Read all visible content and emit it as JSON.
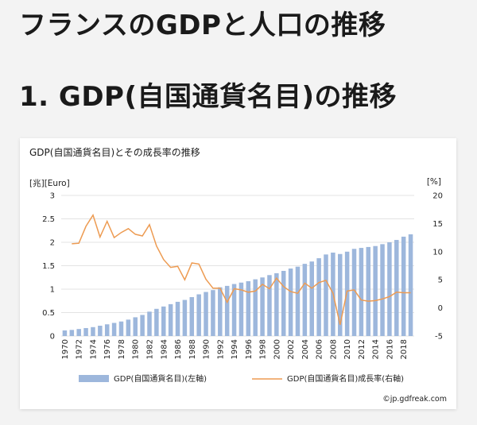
{
  "page": {
    "title": "フランスのGDPと人口の推移",
    "section_title": "1. GDP(自国通貨名目)の推移"
  },
  "chart": {
    "copyright": "©jp.gdfreak.com",
    "colors": {
      "bars": "#9db7dc",
      "line": "#ed9b52",
      "grid": "#e3e3e3"
    }
  },
  "chart_data": {
    "type": "bar",
    "title": "GDP(自国通貨名目)とその成長率の推移",
    "y_left_unit": "[兆][Euro]",
    "y_right_unit": "[%]",
    "y_left_range": [
      0,
      3
    ],
    "y_left_ticks": [
      "0",
      "0.5",
      "1",
      "1.5",
      "2",
      "2.5",
      "3"
    ],
    "y_right_range": [
      -5,
      20
    ],
    "y_right_ticks": [
      "-5",
      "0",
      "5",
      "10",
      "15",
      "20"
    ],
    "x_tick_labels": [
      "1970",
      "1972",
      "1974",
      "1976",
      "1978",
      "1980",
      "1982",
      "1984",
      "1986",
      "1988",
      "1990",
      "1992",
      "1994",
      "1996",
      "1998",
      "2000",
      "2002",
      "2004",
      "2006",
      "2008",
      "2010",
      "2012",
      "2014",
      "2016",
      "2018"
    ],
    "grid": true,
    "legend_position": "bottom",
    "years": [
      1970,
      1971,
      1972,
      1973,
      1974,
      1975,
      1976,
      1977,
      1978,
      1979,
      1980,
      1981,
      1982,
      1983,
      1984,
      1985,
      1986,
      1987,
      1988,
      1989,
      1990,
      1991,
      1992,
      1993,
      1994,
      1995,
      1996,
      1997,
      1998,
      1999,
      2000,
      2001,
      2002,
      2003,
      2004,
      2005,
      2006,
      2007,
      2008,
      2009,
      2010,
      2011,
      2012,
      2013,
      2014,
      2015,
      2016,
      2017,
      2018,
      2019
    ],
    "series": [
      {
        "name": "GDP(自国通貨名目)(左軸)",
        "axis": "left",
        "kind": "bar",
        "values": [
          0.12,
          0.13,
          0.15,
          0.17,
          0.19,
          0.22,
          0.25,
          0.28,
          0.31,
          0.35,
          0.4,
          0.45,
          0.52,
          0.58,
          0.63,
          0.68,
          0.73,
          0.77,
          0.83,
          0.89,
          0.94,
          0.98,
          1.04,
          1.07,
          1.11,
          1.14,
          1.17,
          1.21,
          1.25,
          1.3,
          1.34,
          1.39,
          1.44,
          1.48,
          1.54,
          1.59,
          1.66,
          1.74,
          1.78,
          1.75,
          1.8,
          1.86,
          1.88,
          1.9,
          1.92,
          1.96,
          2.0,
          2.05,
          2.12,
          2.17
        ]
      },
      {
        "name": "GDP(自国通貨名目)成長率(右軸)",
        "axis": "right",
        "kind": "line",
        "values": [
          null,
          11.4,
          11.5,
          14.5,
          16.5,
          12.6,
          15.4,
          12.5,
          13.4,
          14.1,
          13.1,
          12.8,
          14.8,
          11.0,
          8.6,
          7.2,
          7.4,
          5.0,
          8.0,
          7.8,
          5.1,
          3.5,
          3.5,
          1.0,
          3.4,
          3.2,
          2.8,
          3.0,
          4.2,
          3.4,
          5.3,
          3.8,
          2.9,
          2.6,
          4.4,
          3.5,
          4.5,
          4.9,
          2.6,
          -3.0,
          3.0,
          3.2,
          1.4,
          1.2,
          1.3,
          1.6,
          2.0,
          2.8,
          2.7,
          2.7
        ]
      }
    ]
  }
}
